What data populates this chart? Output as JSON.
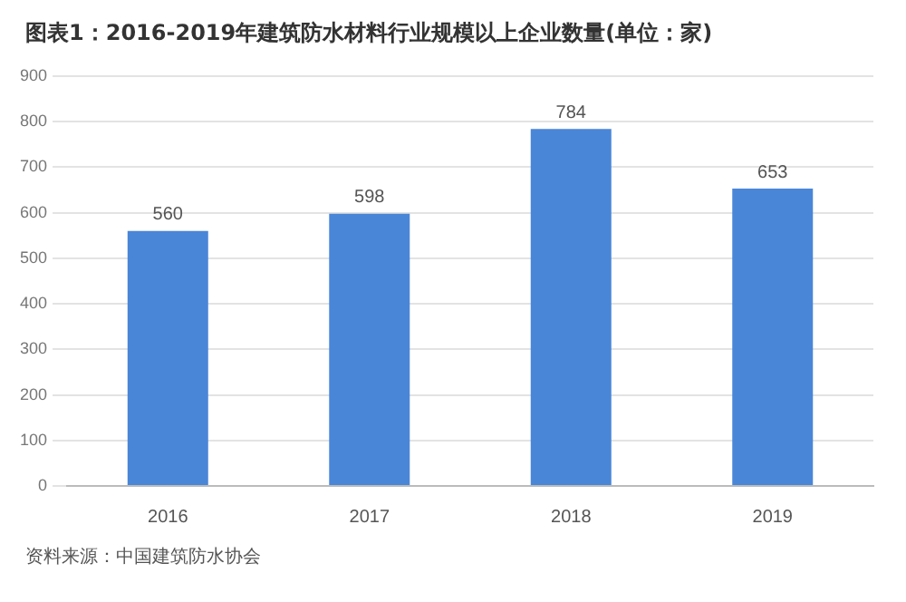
{
  "chart_data": {
    "type": "bar",
    "title": "图表1：2016-2019年建筑防水材料行业规模以上企业数量(单位：家)",
    "categories": [
      "2016",
      "2017",
      "2018",
      "2019"
    ],
    "values": [
      560,
      598,
      784,
      653
    ],
    "color": "#4a86d8",
    "ylim": [
      0,
      900
    ],
    "yticks": [
      0,
      100,
      200,
      300,
      400,
      500,
      600,
      700,
      800,
      900
    ],
    "grid": "y",
    "data_labels": true,
    "annotations": [
      "资料来源：中国建筑防水协会"
    ]
  }
}
